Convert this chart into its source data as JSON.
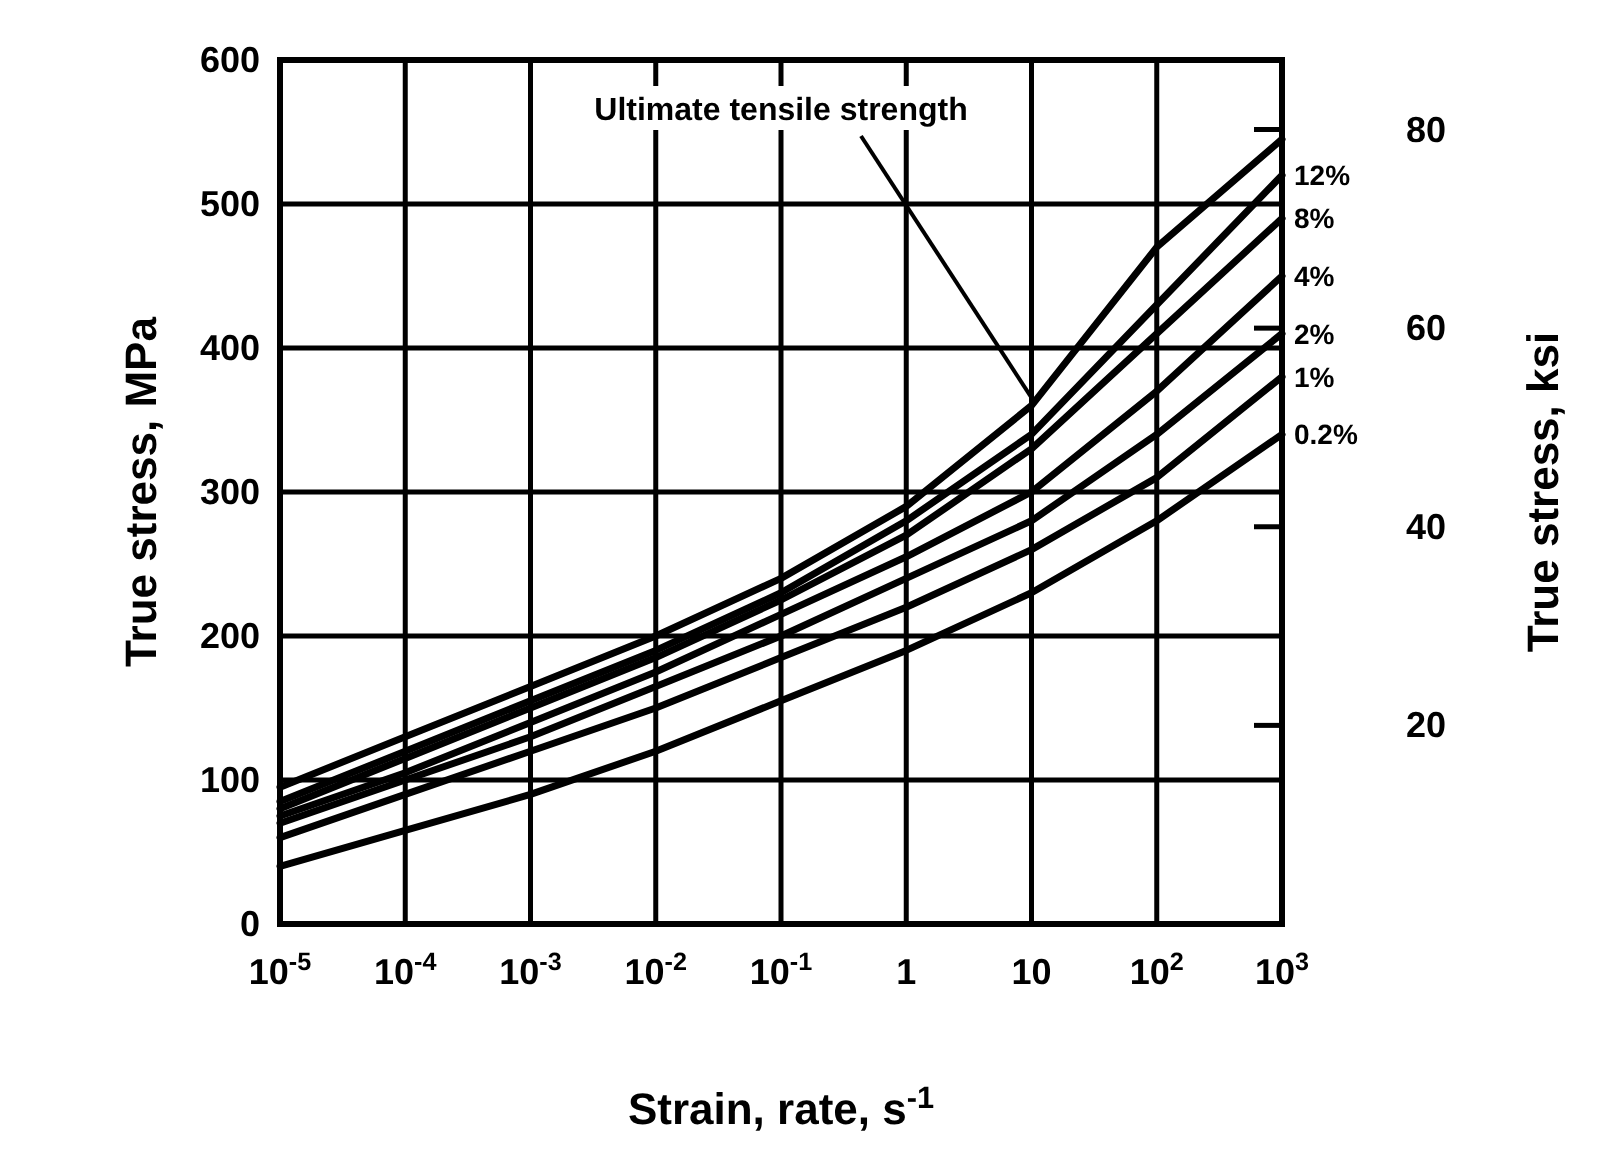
{
  "chart_data": {
    "type": "line",
    "xlabel": "Strain, rate, s$^{-1}$",
    "ylabel": "True stress, MPa",
    "y2label": "True stress, ksi",
    "log": "x",
    "grid": true,
    "legend": "right",
    "line_style": "solid",
    "x": [
      1e-05,
      0.0001,
      0.001,
      0.01,
      0.1,
      1,
      10,
      100,
      1000
    ],
    "xlim": [
      1e-05,
      1000
    ],
    "xticks": [
      {
        "value": 1e-05,
        "label": "10$^{-5}$"
      },
      {
        "value": 0.0001,
        "label": "10$^{-4}$"
      },
      {
        "value": 0.001,
        "label": "10$^{-3}$"
      },
      {
        "value": 0.01,
        "label": "10$^{-2}$"
      },
      {
        "value": 0.1,
        "label": "10$^{-1}$"
      },
      1,
      10,
      {
        "value": 100,
        "label": "10$^{2}$"
      },
      {
        "value": 1000,
        "label": "10$^{3}$"
      }
    ],
    "ylim": [
      0,
      600
    ],
    "yticks": [
      0,
      100,
      200,
      300,
      400,
      500,
      600
    ],
    "y2lim": [
      0,
      87
    ],
    "y2ticks": [
      20,
      40,
      60,
      80
    ],
    "series": [
      {
        "name": "Ultimate tensile strength",
        "color": "#000000",
        "values": [
          95,
          130,
          165,
          200,
          240,
          290,
          360,
          470,
          545
        ]
      },
      {
        "name": "12%",
        "color": "#000000",
        "values": [
          85,
          120,
          155,
          190,
          230,
          280,
          340,
          430,
          520
        ]
      },
      {
        "name": "8%",
        "color": "#000000",
        "values": [
          80,
          115,
          150,
          185,
          225,
          270,
          330,
          410,
          490
        ]
      },
      {
        "name": "4%",
        "color": "#000000",
        "values": [
          75,
          105,
          140,
          175,
          215,
          255,
          300,
          370,
          450
        ]
      },
      {
        "name": "2%",
        "color": "#000000",
        "values": [
          70,
          100,
          130,
          165,
          200,
          240,
          280,
          340,
          410
        ]
      },
      {
        "name": "1%",
        "color": "#000000",
        "values": [
          60,
          90,
          120,
          150,
          185,
          220,
          260,
          310,
          380
        ]
      },
      {
        "name": "0.2%",
        "color": "#000000",
        "values": [
          40,
          65,
          90,
          120,
          155,
          190,
          230,
          280,
          340
        ]
      }
    ]
  }
}
